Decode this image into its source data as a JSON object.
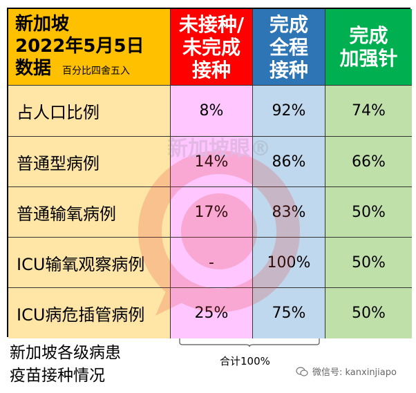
{
  "header": {
    "col0_line1": "新加坡",
    "col0_line2": "2022年5月5日",
    "col0_line3": "数据",
    "col0_note": "百分比四舍五入",
    "col1": [
      "未接种/",
      "未完成",
      "接种"
    ],
    "col2": [
      "完成",
      "全程",
      "接种"
    ],
    "col3": [
      "完成",
      "加强针"
    ]
  },
  "rows": [
    {
      "label": "占人口比例",
      "unvaccinated": "8%",
      "full": "92%",
      "booster": "74%"
    },
    {
      "label": "普通型病例",
      "unvaccinated": "14%",
      "full": "86%",
      "booster": "66%"
    },
    {
      "label": "普通输氧病例",
      "unvaccinated": "17%",
      "full": "83%",
      "booster": "50%"
    },
    {
      "label": "ICU输氧观察病例",
      "unvaccinated": "-",
      "full": "100%",
      "booster": "50%"
    },
    {
      "label": "ICU病危插管病例",
      "unvaccinated": "25%",
      "full": "75%",
      "booster": "50%"
    }
  ],
  "caption": [
    "新加坡各级病患",
    "疫苗接种情况"
  ],
  "total_note": "合计100%",
  "watermark_text": "新加坡眼®",
  "wechat_label": "微信号: kanxinjiapo",
  "colors": {
    "header0": "#ffc000",
    "header1": "#ff0000",
    "header2": "#2e75b6",
    "header3": "#00b050",
    "col0": "#ffe6a6",
    "col1": "#ffc6ff",
    "col2": "#c0d8ee",
    "col3": "#bfe1a9"
  }
}
